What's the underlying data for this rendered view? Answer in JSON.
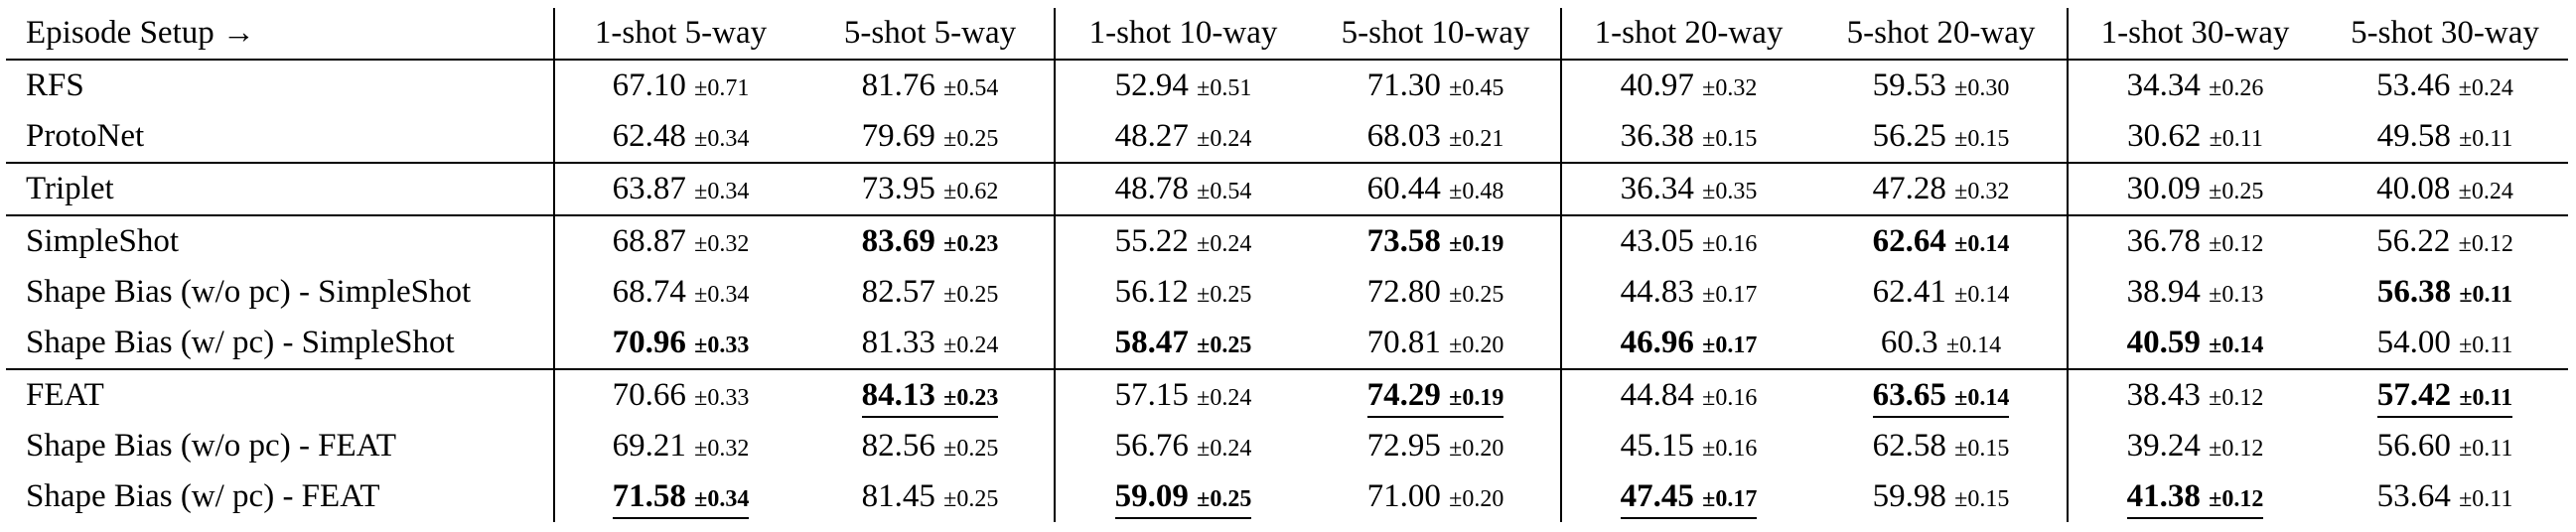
{
  "columns": [
    "Episode Setup →",
    "1-shot 5-way",
    "5-shot 5-way",
    "1-shot 10-way",
    "5-shot 10-way",
    "1-shot 20-way",
    "5-shot 20-way",
    "1-shot 30-way",
    "5-shot 30-way"
  ],
  "rows": [
    {
      "method": "RFS",
      "sep": false,
      "cells": [
        {
          "mean": "67.10",
          "std": "±0.71",
          "b": false,
          "u": false
        },
        {
          "mean": "81.76",
          "std": "±0.54",
          "b": false,
          "u": false
        },
        {
          "mean": "52.94",
          "std": "±0.51",
          "b": false,
          "u": false
        },
        {
          "mean": "71.30",
          "std": "±0.45",
          "b": false,
          "u": false
        },
        {
          "mean": "40.97",
          "std": "±0.32",
          "b": false,
          "u": false
        },
        {
          "mean": "59.53",
          "std": "±0.30",
          "b": false,
          "u": false
        },
        {
          "mean": "34.34",
          "std": "±0.26",
          "b": false,
          "u": false
        },
        {
          "mean": "53.46",
          "std": "±0.24",
          "b": false,
          "u": false
        }
      ]
    },
    {
      "method": "ProtoNet",
      "sep": false,
      "cells": [
        {
          "mean": "62.48",
          "std": "±0.34",
          "b": false,
          "u": false
        },
        {
          "mean": "79.69",
          "std": "±0.25",
          "b": false,
          "u": false
        },
        {
          "mean": "48.27",
          "std": "±0.24",
          "b": false,
          "u": false
        },
        {
          "mean": "68.03",
          "std": "±0.21",
          "b": false,
          "u": false
        },
        {
          "mean": "36.38",
          "std": "±0.15",
          "b": false,
          "u": false
        },
        {
          "mean": "56.25",
          "std": "±0.15",
          "b": false,
          "u": false
        },
        {
          "mean": "30.62",
          "std": "±0.11",
          "b": false,
          "u": false
        },
        {
          "mean": "49.58",
          "std": "±0.11",
          "b": false,
          "u": false
        }
      ]
    },
    {
      "method": "Triplet",
      "sep": true,
      "cells": [
        {
          "mean": "63.87",
          "std": "±0.34",
          "b": false,
          "u": false
        },
        {
          "mean": "73.95",
          "std": "±0.62",
          "b": false,
          "u": false
        },
        {
          "mean": "48.78",
          "std": "±0.54",
          "b": false,
          "u": false
        },
        {
          "mean": "60.44",
          "std": "±0.48",
          "b": false,
          "u": false
        },
        {
          "mean": "36.34",
          "std": "±0.35",
          "b": false,
          "u": false
        },
        {
          "mean": "47.28",
          "std": "±0.32",
          "b": false,
          "u": false
        },
        {
          "mean": "30.09",
          "std": "±0.25",
          "b": false,
          "u": false
        },
        {
          "mean": "40.08",
          "std": "±0.24",
          "b": false,
          "u": false
        }
      ]
    },
    {
      "method": "SimpleShot",
      "sep": true,
      "cells": [
        {
          "mean": "68.87",
          "std": "±0.32",
          "b": false,
          "u": false
        },
        {
          "mean": "83.69",
          "std": "±0.23",
          "b": true,
          "u": false
        },
        {
          "mean": "55.22",
          "std": "±0.24",
          "b": false,
          "u": false
        },
        {
          "mean": "73.58",
          "std": "±0.19",
          "b": true,
          "u": false
        },
        {
          "mean": "43.05",
          "std": "±0.16",
          "b": false,
          "u": false
        },
        {
          "mean": "62.64",
          "std": "±0.14",
          "b": true,
          "u": false
        },
        {
          "mean": "36.78",
          "std": "±0.12",
          "b": false,
          "u": false
        },
        {
          "mean": "56.22",
          "std": "±0.12",
          "b": false,
          "u": false
        }
      ]
    },
    {
      "method": "Shape Bias (w/o pc) - SimpleShot",
      "sep": false,
      "cells": [
        {
          "mean": "68.74",
          "std": "±0.34",
          "b": false,
          "u": false
        },
        {
          "mean": "82.57",
          "std": "±0.25",
          "b": false,
          "u": false
        },
        {
          "mean": "56.12",
          "std": "±0.25",
          "b": false,
          "u": false
        },
        {
          "mean": "72.80",
          "std": "±0.25",
          "b": false,
          "u": false
        },
        {
          "mean": "44.83",
          "std": "±0.17",
          "b": false,
          "u": false
        },
        {
          "mean": "62.41",
          "std": "±0.14",
          "b": false,
          "u": false
        },
        {
          "mean": "38.94",
          "std": "±0.13",
          "b": false,
          "u": false
        },
        {
          "mean": "56.38",
          "std": "±0.11",
          "b": true,
          "u": false
        }
      ]
    },
    {
      "method": "Shape Bias (w/ pc) - SimpleShot",
      "sep": false,
      "cells": [
        {
          "mean": "70.96",
          "std": "±0.33",
          "b": true,
          "u": false
        },
        {
          "mean": "81.33",
          "std": "±0.24",
          "b": false,
          "u": false
        },
        {
          "mean": "58.47",
          "std": "±0.25",
          "b": true,
          "u": false
        },
        {
          "mean": "70.81",
          "std": "±0.20",
          "b": false,
          "u": false
        },
        {
          "mean": "46.96",
          "std": "±0.17",
          "b": true,
          "u": false
        },
        {
          "mean": "60.3",
          "std": "±0.14",
          "b": false,
          "u": false
        },
        {
          "mean": "40.59",
          "std": "±0.14",
          "b": true,
          "u": false
        },
        {
          "mean": "54.00",
          "std": "±0.11",
          "b": false,
          "u": false
        }
      ]
    },
    {
      "method": "FEAT",
      "sep": true,
      "cells": [
        {
          "mean": "70.66",
          "std": "±0.33",
          "b": false,
          "u": false
        },
        {
          "mean": "84.13",
          "std": "±0.23",
          "b": true,
          "u": true
        },
        {
          "mean": "57.15",
          "std": "±0.24",
          "b": false,
          "u": false
        },
        {
          "mean": "74.29",
          "std": "±0.19",
          "b": true,
          "u": true
        },
        {
          "mean": "44.84",
          "std": "±0.16",
          "b": false,
          "u": false
        },
        {
          "mean": "63.65",
          "std": "±0.14",
          "b": true,
          "u": true
        },
        {
          "mean": "38.43",
          "std": "±0.12",
          "b": false,
          "u": false
        },
        {
          "mean": "57.42",
          "std": "±0.11",
          "b": true,
          "u": true
        }
      ]
    },
    {
      "method": "Shape Bias (w/o pc) - FEAT",
      "sep": false,
      "cells": [
        {
          "mean": "69.21",
          "std": "±0.32",
          "b": false,
          "u": false
        },
        {
          "mean": "82.56",
          "std": "±0.25",
          "b": false,
          "u": false
        },
        {
          "mean": "56.76",
          "std": "±0.24",
          "b": false,
          "u": false
        },
        {
          "mean": "72.95",
          "std": "±0.20",
          "b": false,
          "u": false
        },
        {
          "mean": "45.15",
          "std": "±0.16",
          "b": false,
          "u": false
        },
        {
          "mean": "62.58",
          "std": "±0.15",
          "b": false,
          "u": false
        },
        {
          "mean": "39.24",
          "std": "±0.12",
          "b": false,
          "u": false
        },
        {
          "mean": "56.60",
          "std": "±0.11",
          "b": false,
          "u": false
        }
      ]
    },
    {
      "method": "Shape Bias (w/ pc) - FEAT",
      "sep": false,
      "cells": [
        {
          "mean": "71.58",
          "std": "±0.34",
          "b": true,
          "u": true
        },
        {
          "mean": "81.45",
          "std": "±0.25",
          "b": false,
          "u": false
        },
        {
          "mean": "59.09",
          "std": "±0.25",
          "b": true,
          "u": true
        },
        {
          "mean": "71.00",
          "std": "±0.20",
          "b": false,
          "u": false
        },
        {
          "mean": "47.45",
          "std": "±0.17",
          "b": true,
          "u": true
        },
        {
          "mean": "59.98",
          "std": "±0.15",
          "b": false,
          "u": false
        },
        {
          "mean": "41.38",
          "std": "±0.12",
          "b": true,
          "u": true
        },
        {
          "mean": "53.64",
          "std": "±0.11",
          "b": false,
          "u": false
        }
      ]
    }
  ]
}
